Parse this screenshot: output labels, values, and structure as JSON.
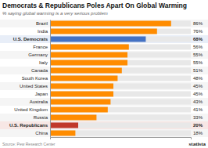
{
  "chart_data": {
    "type": "bar",
    "orientation": "horizontal",
    "title": "Democrats & Republicans Poles Apart On Global Warming",
    "subtitle": "% saying global warming is a very serious problem",
    "categories": [
      "Brazil",
      "India",
      "U.S. Democrats",
      "France",
      "Germany",
      "Italy",
      "Canada",
      "South Korea",
      "United States",
      "Japan",
      "Australia",
      "United Kingdom",
      "Russia",
      "U.S. Republicans",
      "China"
    ],
    "values": [
      86,
      76,
      68,
      56,
      55,
      55,
      51,
      48,
      45,
      45,
      43,
      41,
      33,
      20,
      18
    ],
    "value_labels": [
      "86%",
      "76%",
      "68%",
      "56%",
      "55%",
      "55%",
      "51%",
      "48%",
      "45%",
      "45%",
      "43%",
      "41%",
      "33%",
      "20%",
      "18%"
    ],
    "colors": [
      "#FF8C00",
      "#FF8C00",
      "#4472C4",
      "#FF8C00",
      "#FF8C00",
      "#FF8C00",
      "#FF8C00",
      "#FF8C00",
      "#FF8C00",
      "#FF8C00",
      "#FF8C00",
      "#FF8C00",
      "#FF8C00",
      "#C0392B",
      "#FF8C00"
    ],
    "data_labels": true,
    "xlim": [
      0,
      100
    ],
    "tick_labels": "y",
    "annotations": [
      "Source: Pew Research Center",
      "statista"
    ]
  }
}
